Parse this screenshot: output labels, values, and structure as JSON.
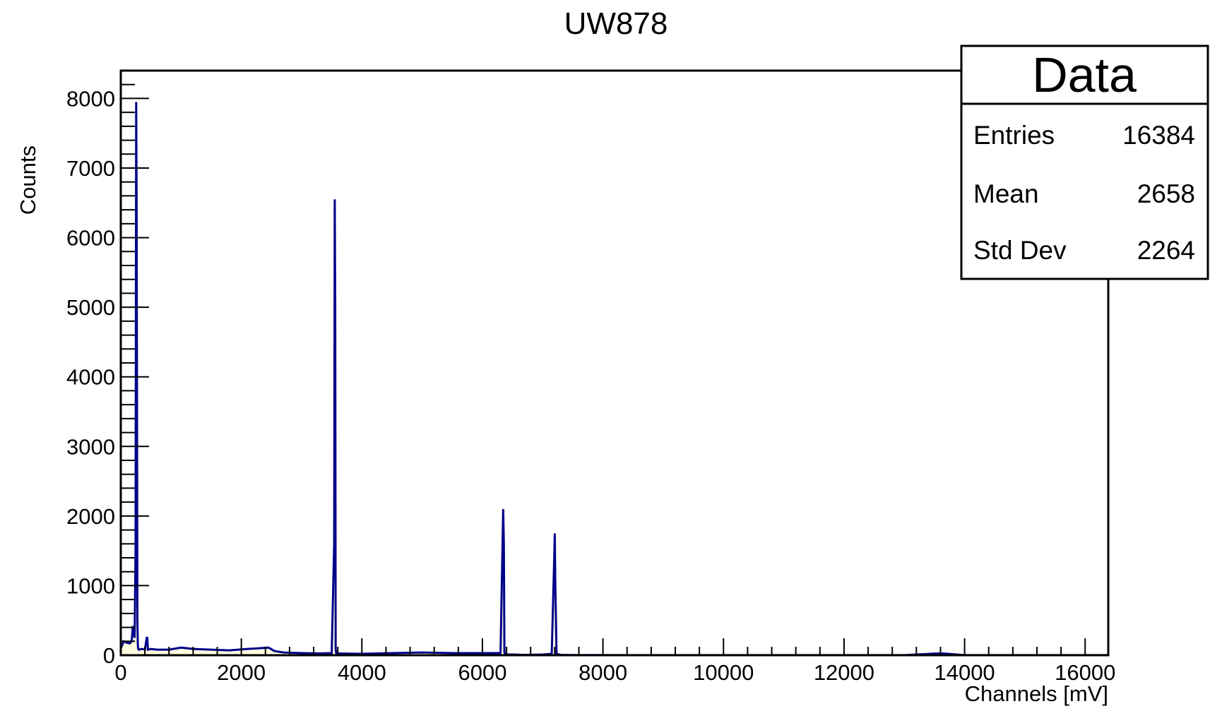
{
  "chart_data": {
    "type": "histogram",
    "title": "UW878",
    "xlabel": "Channels [mV]",
    "ylabel": "Counts",
    "xlim": [
      0,
      16384
    ],
    "ylim": [
      0,
      8400
    ],
    "x_ticks": [
      0,
      2000,
      4000,
      6000,
      8000,
      10000,
      12000,
      14000,
      16000
    ],
    "y_ticks": [
      0,
      1000,
      2000,
      3000,
      4000,
      5000,
      6000,
      7000,
      8000
    ],
    "grid": false,
    "line_color": "#00008b",
    "fill_color": "#fffde0",
    "series": [
      {
        "x": [
          0,
          50,
          100,
          150,
          180,
          200,
          230,
          245,
          255,
          262,
          268,
          275,
          282,
          290,
          300,
          350,
          400,
          430,
          440,
          450,
          500,
          600,
          800,
          1000,
          1200,
          1500,
          1800,
          2100,
          2300,
          2450,
          2550,
          2700,
          3000,
          3300,
          3500,
          3540,
          3550,
          3558,
          3565,
          3575,
          3600,
          4000,
          4500,
          5000,
          5500,
          6000,
          6300,
          6345,
          6355,
          6365,
          6380,
          6500,
          6700,
          7000,
          7150,
          7190,
          7200,
          7210,
          7230,
          7300,
          7500,
          8000,
          9000,
          10000,
          12000,
          13000,
          13550,
          13650,
          14000,
          16000,
          16384
        ],
        "y": [
          100,
          200,
          180,
          170,
          200,
          420,
          250,
          1500,
          7950,
          6500,
          4000,
          500,
          150,
          90,
          80,
          90,
          80,
          250,
          250,
          80,
          90,
          80,
          80,
          110,
          90,
          80,
          70,
          90,
          100,
          110,
          60,
          40,
          30,
          25,
          30,
          1600,
          6550,
          5000,
          80,
          25,
          25,
          20,
          30,
          40,
          30,
          30,
          30,
          2100,
          1600,
          40,
          10,
          10,
          5,
          10,
          20,
          1350,
          1750,
          1000,
          20,
          5,
          3,
          2,
          1,
          1,
          1,
          1,
          25,
          25,
          1,
          1,
          1
        ]
      }
    ]
  },
  "stats": {
    "name": "Data",
    "rows": [
      {
        "label": "Entries",
        "value": "16384"
      },
      {
        "label": "Mean",
        "value": "2658"
      },
      {
        "label": "Std Dev",
        "value": "2264"
      }
    ]
  }
}
